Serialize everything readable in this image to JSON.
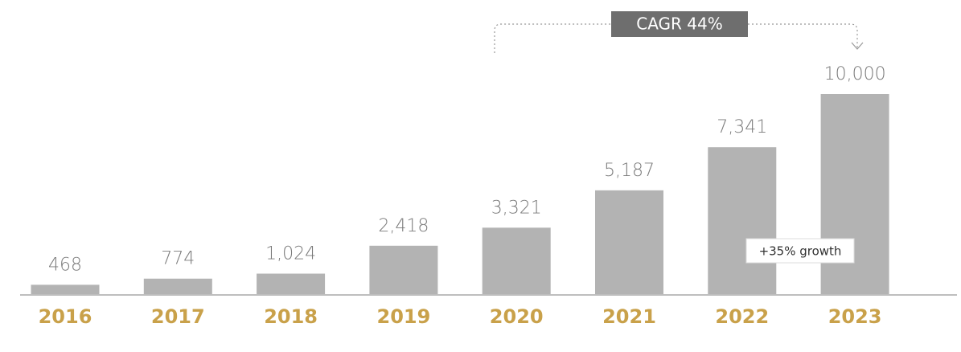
{
  "chart_data": {
    "type": "bar",
    "categories": [
      "2016",
      "2017",
      "2018",
      "2019",
      "2020",
      "2021",
      "2022",
      "2023"
    ],
    "values": [
      468,
      774,
      1024,
      2418,
      3321,
      5187,
      7341,
      10000
    ],
    "value_labels": [
      "468",
      "774",
      "1,024",
      "2,418",
      "3,321",
      "5,187",
      "7,341",
      "10,000"
    ],
    "color": "#b3b3b3",
    "annotations": [
      "CAGR 44%",
      "+35% growth"
    ]
  }
}
